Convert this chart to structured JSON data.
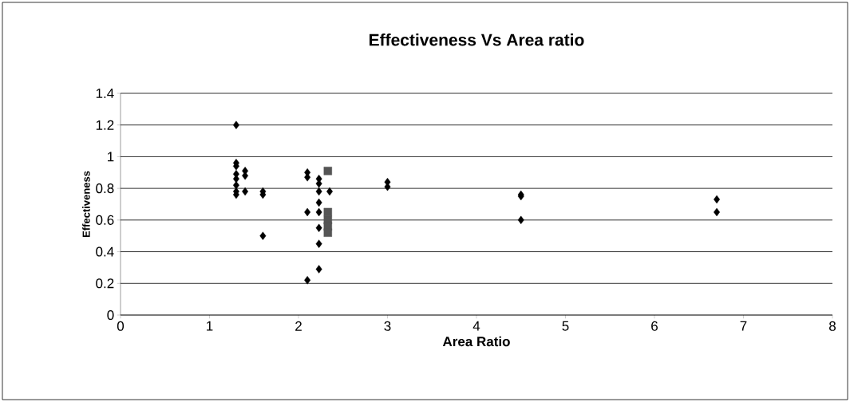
{
  "chart_data": {
    "type": "scatter",
    "title": "Effectiveness Vs Area ratio",
    "xlabel": "Area Ratio",
    "ylabel": "Effectiveness",
    "xlim": [
      0,
      8
    ],
    "xticks": [
      0,
      1,
      2,
      3,
      4,
      5,
      6,
      7,
      8
    ],
    "ylim": [
      0,
      1.4
    ],
    "yticks": [
      0,
      0.2,
      0.4,
      0.6,
      0.8,
      1,
      1.2,
      1.4
    ],
    "grid": "y",
    "series": [
      {
        "color": "#000000",
        "marker": "diamond",
        "x": [
          1.3,
          1.3,
          1.3,
          1.3,
          1.3,
          1.3,
          1.3,
          1.3,
          1.4,
          1.4,
          1.4,
          1.6,
          1.6,
          1.6,
          2.1,
          2.1,
          2.1,
          2.1,
          2.23,
          2.23,
          2.23,
          2.23,
          2.23,
          2.23,
          2.23,
          2.23,
          2.35,
          3,
          3,
          4.5,
          4.5,
          4.5,
          6.7,
          6.7
        ],
        "values": [
          1.2,
          0.96,
          0.94,
          0.89,
          0.86,
          0.82,
          0.78,
          0.76,
          0.91,
          0.88,
          0.78,
          0.78,
          0.76,
          0.5,
          0.9,
          0.87,
          0.65,
          0.22,
          0.86,
          0.83,
          0.78,
          0.71,
          0.65,
          0.55,
          0.45,
          0.29,
          0.78,
          0.84,
          0.81,
          0.76,
          0.75,
          0.6,
          0.73,
          0.65
        ]
      },
      {
        "color": "#555555",
        "marker": "square",
        "x": [
          2.33,
          2.33,
          2.33,
          2.33,
          2.33
        ],
        "values": [
          0.91,
          0.65,
          0.6,
          0.56,
          0.52
        ]
      }
    ]
  }
}
